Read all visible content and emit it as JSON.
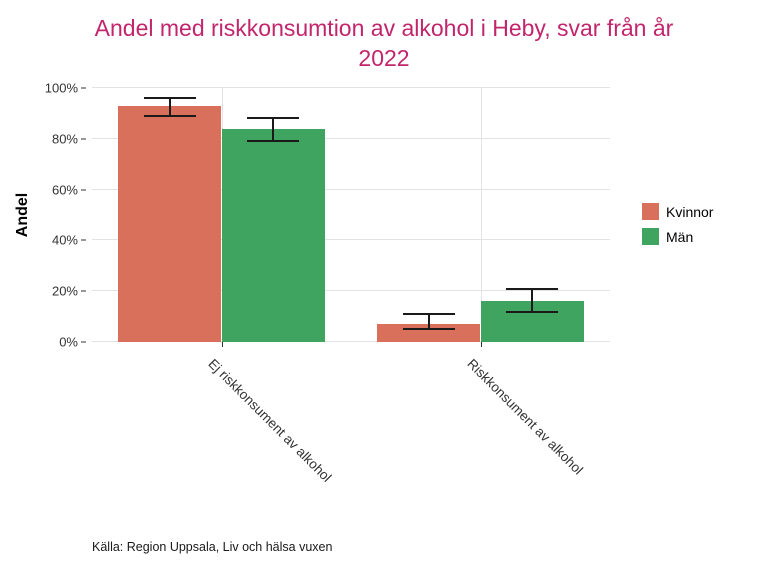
{
  "title": "Andel med riskkonsumtion av alkohol i Heby, svar från år 2022",
  "caption": "Källa: Region Uppsala, Liv och hälsa vuxen",
  "y_axis": {
    "label": "Andel",
    "ticks": [
      "0%",
      "20%",
      "40%",
      "60%",
      "80%",
      "100%"
    ]
  },
  "legend": {
    "position": "right",
    "items": [
      {
        "label": "Kvinnor",
        "color": "#d9705c"
      },
      {
        "label": "Män",
        "color": "#3fa45f"
      }
    ]
  },
  "colors": {
    "title": "#c2256b",
    "grid": "#e3e3e3",
    "errorbar": "#1a1a1a",
    "kvinnor": "#d9705c",
    "man": "#3fa45f"
  },
  "chart_data": {
    "type": "bar",
    "title": "Andel med riskkonsumtion av alkohol i Heby, svar från år 2022",
    "categories": [
      "Ej riskkonsument av alkohol",
      "Riskkonsument av alkohol"
    ],
    "series": [
      {
        "name": "Kvinnor",
        "color": "#d9705c",
        "values": [
          93,
          7
        ],
        "error_low": [
          89,
          5
        ],
        "error_high": [
          96,
          11
        ]
      },
      {
        "name": "Män",
        "color": "#3fa45f",
        "values": [
          84,
          16
        ],
        "error_low": [
          79,
          12
        ],
        "error_high": [
          88,
          21
        ]
      }
    ],
    "xlabel": "",
    "ylabel": "Andel",
    "ylim": [
      0,
      100
    ],
    "grid": true,
    "legend_position": "right",
    "error_bars": true
  }
}
